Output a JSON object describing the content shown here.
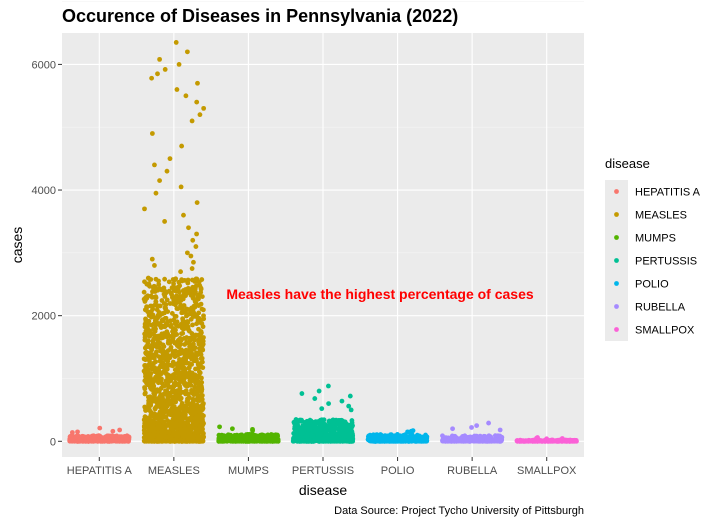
{
  "chart_data": {
    "type": "scatter",
    "title": "Occurence of Diseases in Pennsylvania (2022)",
    "xlabel": "disease",
    "ylabel": "cases",
    "caption": "Data Source: Project Tycho University of Pittsburgh",
    "annotation": "Measles have the highest percentage of cases",
    "ylim": [
      -250,
      6500
    ],
    "yticks": [
      0,
      2000,
      4000,
      6000
    ],
    "grid": true,
    "legend": {
      "title": "disease",
      "position": "right"
    },
    "categories": [
      "HEPATITIS A",
      "MEASLES",
      "MUMPS",
      "PERTUSSIS",
      "POLIO",
      "RUBELLA",
      "SMALLPOX"
    ],
    "series": [
      {
        "name": "HEPATITIS A",
        "color": "#F8766D",
        "count": 380,
        "typical_max": 90,
        "outliers": [
          210,
          180,
          160,
          150,
          140
        ]
      },
      {
        "name": "MEASLES",
        "color": "#C49A00",
        "count": 1700,
        "typical_max": 2600,
        "outliers": [
          6350,
          6200,
          6080,
          6000,
          5920,
          5850,
          5780,
          5700,
          5600,
          5500,
          5400,
          5300,
          5200,
          5100,
          4900,
          4700,
          4500,
          4400,
          4300,
          4150,
          4050,
          3950,
          3800,
          3700,
          3600,
          3500,
          3400,
          3300,
          3200,
          3100,
          3000,
          2950,
          2900,
          2850,
          2800,
          2750,
          2700
        ]
      },
      {
        "name": "MUMPS",
        "color": "#53B400",
        "count": 380,
        "typical_max": 110,
        "outliers": [
          230,
          200,
          190,
          170
        ]
      },
      {
        "name": "PERTUSSIS",
        "color": "#00C094",
        "count": 620,
        "typical_max": 350,
        "outliers": [
          880,
          800,
          760,
          720,
          680,
          640,
          600,
          560,
          520,
          500
        ]
      },
      {
        "name": "POLIO",
        "color": "#00B6EB",
        "count": 380,
        "typical_max": 110,
        "outliers": [
          170,
          160,
          150
        ]
      },
      {
        "name": "RUBELLA",
        "color": "#A58AFF",
        "count": 300,
        "typical_max": 90,
        "outliers": [
          290,
          250,
          220,
          200,
          180
        ]
      },
      {
        "name": "SMALLPOX",
        "color": "#FB61D7",
        "count": 220,
        "typical_max": 20,
        "outliers": [
          60,
          50,
          45,
          40
        ]
      }
    ]
  }
}
